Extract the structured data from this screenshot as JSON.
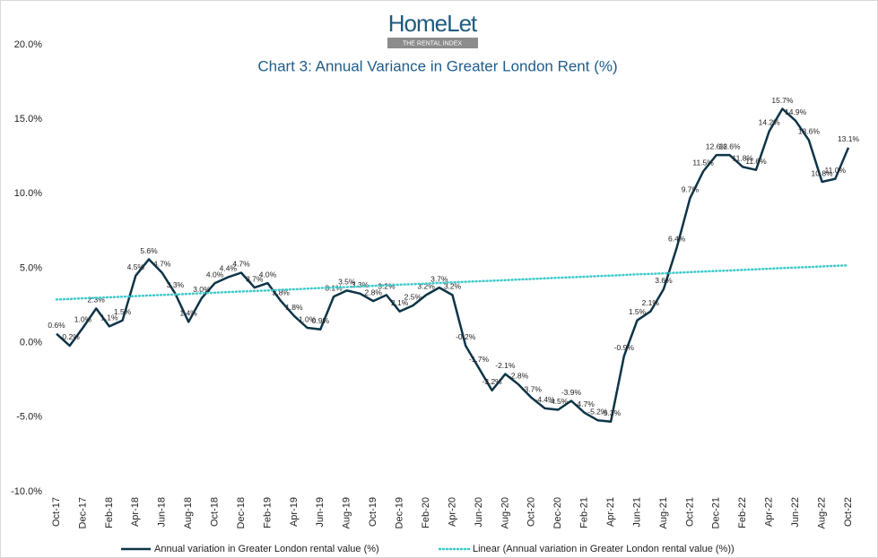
{
  "logo": {
    "name": "HomeLet",
    "tagline": "THE RENTAL INDEX"
  },
  "chart_data": {
    "type": "line",
    "title": "Chart 3: Annual Variance in Greater London Rent (%)",
    "categories": [
      "Oct-17",
      null,
      "Dec-17",
      null,
      "Feb-18",
      null,
      "Apr-18",
      null,
      "Jun-18",
      null,
      "Aug-18",
      null,
      "Oct-18",
      null,
      "Dec-18",
      null,
      "Feb-19",
      null,
      "Apr-19",
      null,
      "Jun-19",
      null,
      "Aug-19",
      null,
      "Oct-19",
      null,
      "Dec-19",
      null,
      "Feb-20",
      null,
      "Apr-20",
      null,
      "Jun-20",
      null,
      "Aug-20",
      null,
      "Oct-20",
      null,
      "Dec-20",
      null,
      "Feb-21",
      null,
      "Apr-21",
      null,
      "Jun-21",
      null,
      "Aug-21",
      null,
      "Oct-21",
      null,
      "Dec-21",
      null,
      "Feb-22",
      null,
      "Apr-22",
      null,
      "Jun-22",
      null,
      "Aug-22",
      null,
      "Oct-22"
    ],
    "series": [
      {
        "name": "Annual variation in Greater London rental value (%)",
        "color": "#0d3447",
        "style": "solid",
        "show_labels": true,
        "values": [
          0.6,
          -0.2,
          1.0,
          2.3,
          1.1,
          1.5,
          4.5,
          5.6,
          4.7,
          3.3,
          1.4,
          3.0,
          4.0,
          4.4,
          4.7,
          3.7,
          4.0,
          2.8,
          1.8,
          1.0,
          0.9,
          3.1,
          3.5,
          3.3,
          2.8,
          3.2,
          2.1,
          2.5,
          3.2,
          3.7,
          3.2,
          -0.2,
          -1.7,
          -3.2,
          -2.1,
          -2.8,
          -3.7,
          -4.4,
          -4.5,
          -3.9,
          -4.7,
          -5.2,
          -5.3,
          -0.9,
          1.5,
          2.1,
          3.6,
          6.4,
          9.7,
          11.5,
          12.6,
          12.6,
          11.8,
          11.6,
          14.2,
          15.7,
          14.9,
          13.6,
          10.8,
          11.0,
          13.1
        ],
        "value_labels": [
          "0.6%",
          "-0.2%",
          "1.0%",
          "2.3%",
          "1.1%",
          "1.5%",
          "4.5%",
          "5.6%",
          "4.7%",
          "3.3%",
          "1.4%",
          "3.0%",
          "4.0%",
          "4.4%",
          "4.7%",
          "3.7%",
          "4.0%",
          "2.8%",
          "1.8%",
          "1.0%",
          "0.9%",
          "3.1%",
          "3.5%",
          "3.3%",
          "2.8%",
          "3.2%",
          "2.1%",
          "2.5%",
          "3.2%",
          "3.7%",
          "3.2%",
          "-0.2%",
          "-1.7%",
          "-3.2%",
          "-2.1%",
          "-2.8%",
          "-3.7%",
          "-4.4%",
          "-4.5%",
          "-3.9%",
          "-4.7%",
          "-5.2%",
          "-5.3%",
          "-0.9%",
          "1.5%",
          "2.1%",
          "3.6%",
          "6.4%",
          "9.7%",
          "11.5%",
          "12.6%",
          "12.6%",
          "11.8%",
          "11.6%",
          "14.2%",
          "15.7%",
          "14.9%",
          "13.6%",
          "10.8%",
          "11.0%",
          "13.1%"
        ]
      },
      {
        "name": "Linear (Annual variation in Greater London rental value (%))",
        "color": "#3cc9c9",
        "style": "dotted",
        "show_labels": false,
        "values": [
          2.9,
          2.94,
          2.98,
          3.01,
          3.05,
          3.09,
          3.13,
          3.17,
          3.21,
          3.24,
          3.28,
          3.32,
          3.36,
          3.4,
          3.44,
          3.47,
          3.51,
          3.55,
          3.59,
          3.63,
          3.67,
          3.7,
          3.74,
          3.78,
          3.82,
          3.86,
          3.9,
          3.93,
          3.97,
          4.01,
          4.05,
          4.09,
          4.13,
          4.16,
          4.2,
          4.24,
          4.28,
          4.32,
          4.36,
          4.39,
          4.43,
          4.47,
          4.51,
          4.55,
          4.59,
          4.62,
          4.66,
          4.7,
          4.74,
          4.78,
          4.82,
          4.85,
          4.89,
          4.93,
          4.97,
          5.01,
          5.05,
          5.08,
          5.12,
          5.16,
          5.2
        ]
      }
    ],
    "ylim": [
      -10,
      20
    ],
    "yticks": [
      {
        "value": -10,
        "label": "-10.0%"
      },
      {
        "value": -5,
        "label": "-5.0%"
      },
      {
        "value": 0,
        "label": "0.0%"
      },
      {
        "value": 5,
        "label": "5.0%"
      },
      {
        "value": 10,
        "label": "10.0%"
      },
      {
        "value": 15,
        "label": "15.0%"
      },
      {
        "value": 20,
        "label": "20.0%"
      }
    ],
    "grid": false,
    "legend": "bottom"
  }
}
